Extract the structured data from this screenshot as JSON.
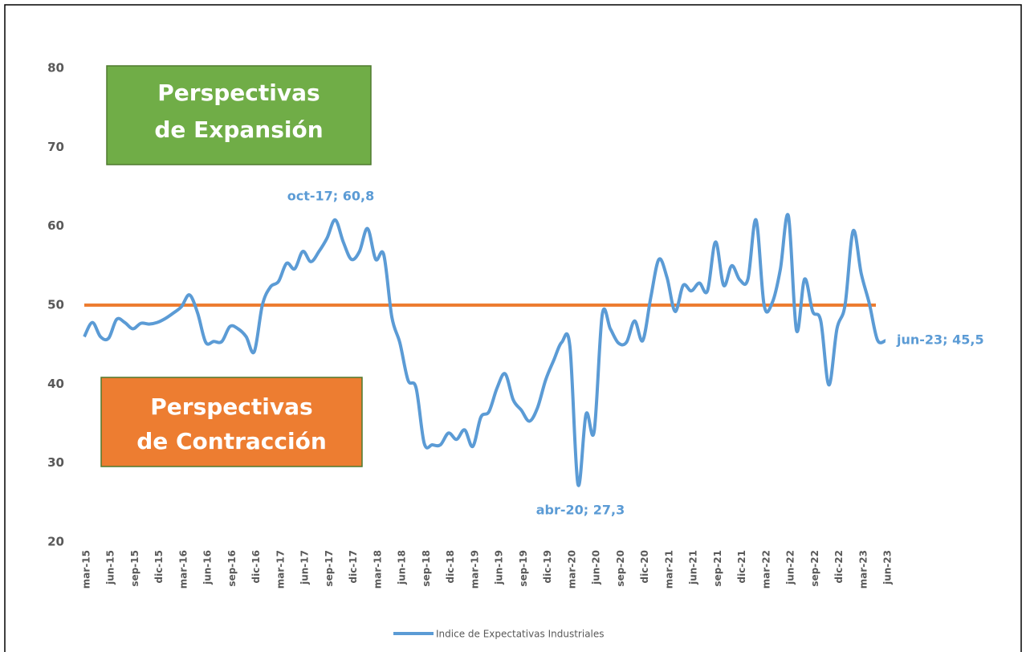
{
  "chart_data": {
    "type": "line",
    "categories": [
      "mar-15",
      null,
      null,
      "jun-15",
      null,
      null,
      "sep-15",
      null,
      null,
      "dic-15",
      null,
      null,
      "mar-16",
      null,
      null,
      "jun-16",
      null,
      null,
      "sep-16",
      null,
      null,
      "dic-16",
      null,
      null,
      "mar-17",
      null,
      null,
      "jun-17",
      null,
      null,
      "sep-17",
      null,
      null,
      "dic-17",
      null,
      null,
      "mar-18",
      null,
      null,
      "jun-18",
      null,
      null,
      "sep-18",
      null,
      null,
      "dic-18",
      null,
      null,
      "mar-19",
      null,
      null,
      "jun-19",
      null,
      null,
      "sep-19",
      null,
      null,
      "dic-19",
      null,
      null,
      "mar-20",
      null,
      null,
      "jun-20",
      null,
      null,
      "sep-20",
      null,
      null,
      "dic-20",
      null,
      null,
      "mar-21",
      null,
      null,
      "jun-21",
      null,
      null,
      "sep-21",
      null,
      null,
      "dic-21",
      null,
      null,
      "mar-22",
      null,
      null,
      "jun-22",
      null,
      null,
      "sep-22",
      null,
      null,
      "dic-22",
      null,
      null,
      "mar-23",
      null,
      null,
      "jun-23"
    ],
    "series": [
      {
        "name": "Indice de Expectativas Industriales",
        "color": "#5b9bd5",
        "values": [
          46,
          47.8,
          46,
          45.8,
          48.2,
          47.8,
          47,
          47.7,
          47.6,
          47.8,
          48.3,
          49,
          49.8,
          51.3,
          49,
          45.3,
          45.4,
          45.4,
          47.3,
          47,
          46,
          44.1,
          50,
          52.3,
          53,
          55.3,
          54.6,
          56.8,
          55.5,
          56.8,
          58.5,
          60.8,
          58,
          55.8,
          56.8,
          59.7,
          55.8,
          56.4,
          48.5,
          45.2,
          40.5,
          39.5,
          32.5,
          32.3,
          32.3,
          33.8,
          33,
          34.2,
          32.1,
          35.8,
          36.5,
          39.5,
          41.3,
          38,
          36.7,
          35.3,
          37,
          40.5,
          43,
          45.3,
          44.8,
          27.3,
          36.2,
          34,
          48.8,
          47,
          45.2,
          45.3,
          48,
          45.5,
          51,
          55.8,
          53.5,
          49.2,
          52.5,
          51.8,
          52.8,
          51.8,
          58,
          52.5,
          55,
          53.2,
          53.3,
          60.8,
          50,
          50.3,
          54.5,
          61.3,
          46.8,
          53.3,
          49.2,
          48,
          39.9,
          47,
          50,
          59.4,
          54,
          50.2,
          45.6,
          45.5
        ]
      }
    ],
    "reference_line": {
      "value": 50,
      "color": "#ed7d31"
    },
    "ylim": [
      20,
      80
    ],
    "yticks": [
      20,
      30,
      40,
      50,
      60,
      70,
      80
    ],
    "grid": false,
    "legend": "bottom",
    "annotations": [
      "oct-17; 60,8",
      "abr-20; 27,3",
      "jun-23; 45,5"
    ],
    "boxes": [
      {
        "lines": [
          "Perspectivas",
          "de Expansión"
        ],
        "color": "#70ad47"
      },
      {
        "lines": [
          "Perspectivas",
          "de Contracción"
        ],
        "color": "#ed7d31"
      }
    ]
  }
}
